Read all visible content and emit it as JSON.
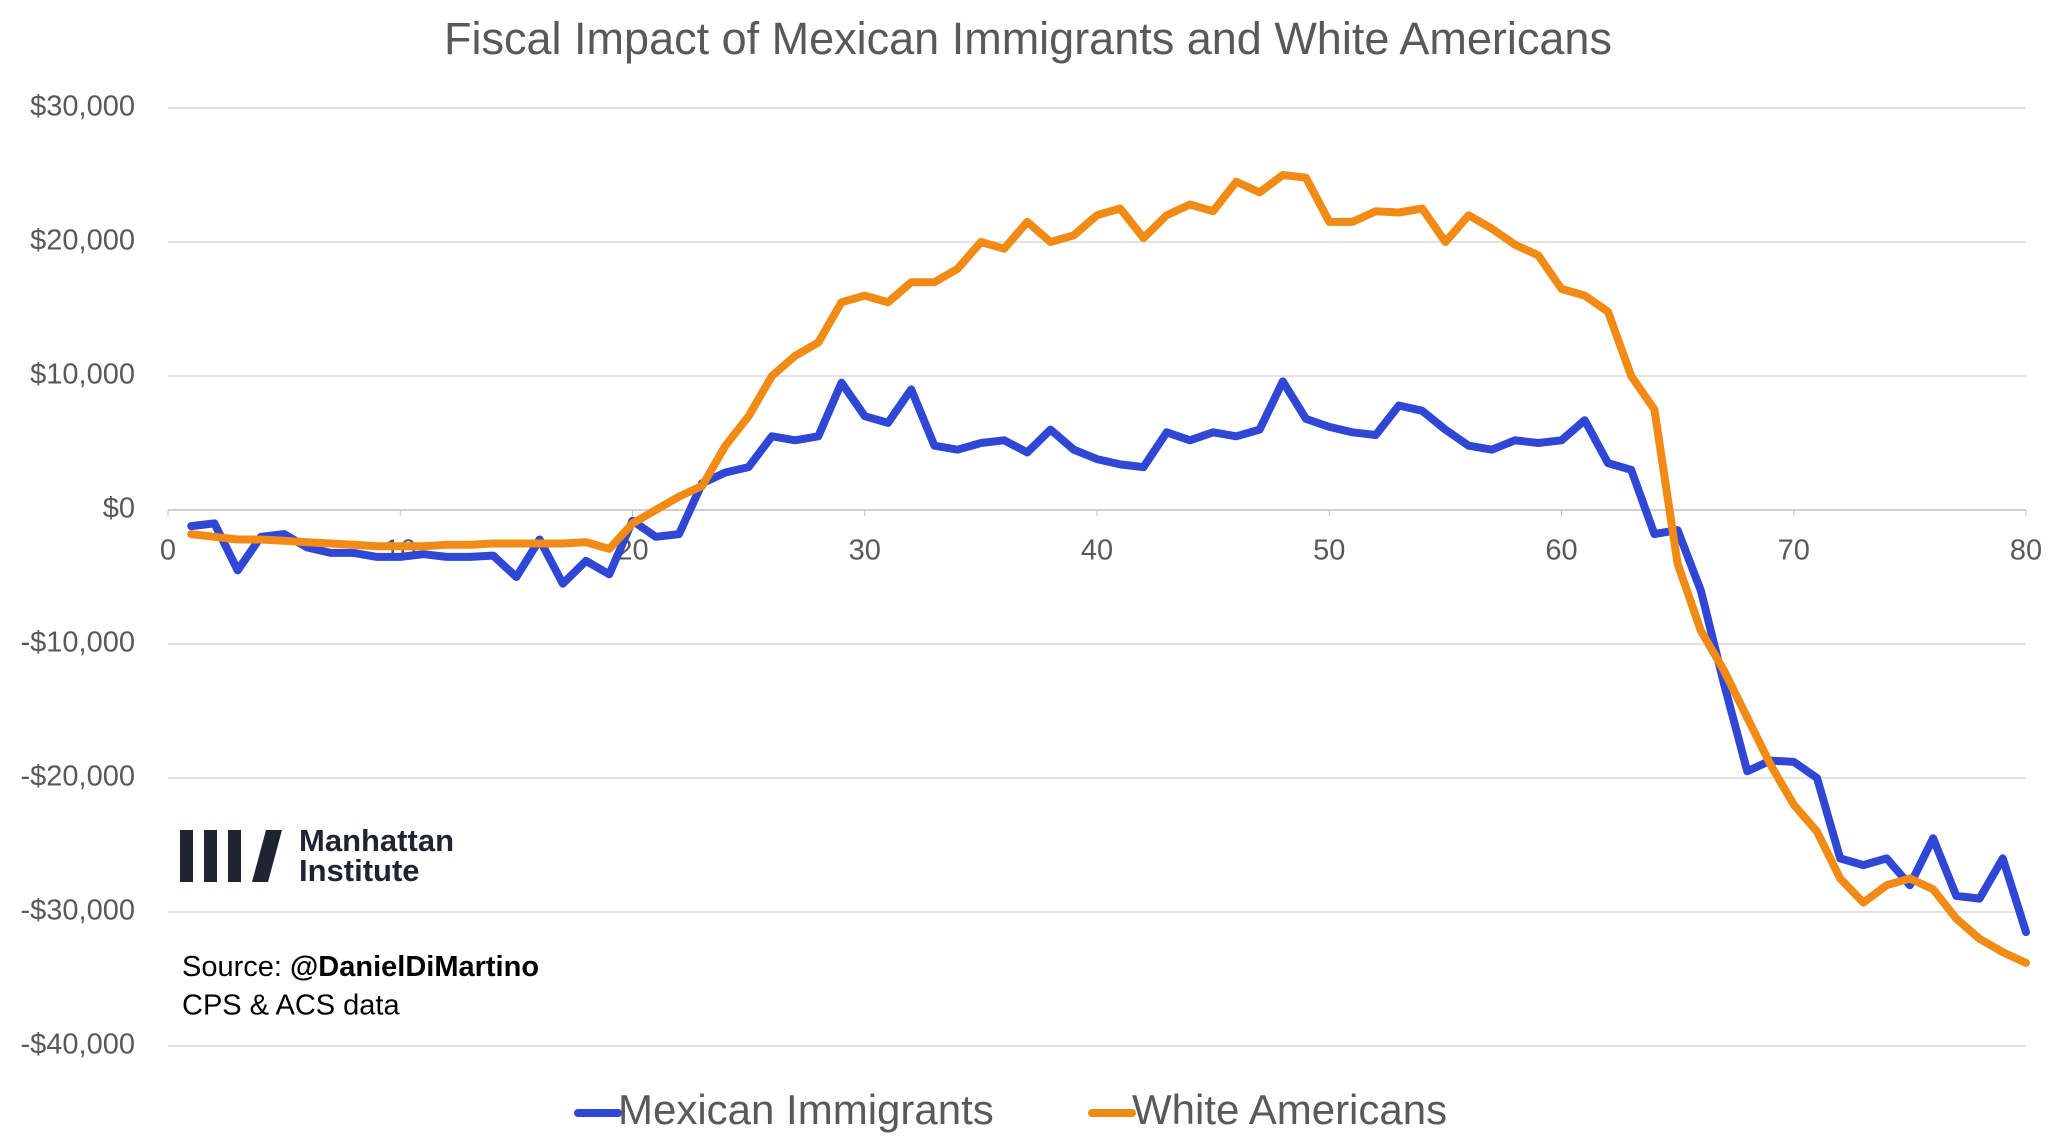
{
  "chart_data": {
    "type": "line",
    "title": "Fiscal Impact of Mexican Immigrants and White Americans",
    "x": [
      1,
      2,
      3,
      4,
      5,
      6,
      7,
      8,
      9,
      10,
      11,
      12,
      13,
      14,
      15,
      16,
      17,
      18,
      19,
      20,
      21,
      22,
      23,
      24,
      25,
      26,
      27,
      28,
      29,
      30,
      31,
      32,
      33,
      34,
      35,
      36,
      37,
      38,
      39,
      40,
      41,
      42,
      43,
      44,
      45,
      46,
      47,
      48,
      49,
      50,
      51,
      52,
      53,
      54,
      55,
      56,
      57,
      58,
      59,
      60,
      61,
      62,
      63,
      64,
      65,
      66,
      67,
      68,
      69,
      70,
      71,
      72,
      73,
      74,
      75,
      76,
      77,
      78,
      79,
      80
    ],
    "series": [
      {
        "name": "Mexican Immigrants",
        "color": "#3047d6",
        "values": [
          -1200,
          -1000,
          -4500,
          -2000,
          -1800,
          -2800,
          -3200,
          -3200,
          -3500,
          -3500,
          -3300,
          -3500,
          -3500,
          -3400,
          -5000,
          -2200,
          -5500,
          -3800,
          -4800,
          -800,
          -2000,
          -1800,
          2000,
          2800,
          3200,
          5500,
          5200,
          5500,
          9500,
          7000,
          6500,
          9000,
          4800,
          4500,
          5000,
          5200,
          4300,
          6000,
          4500,
          3800,
          3400,
          3200,
          5800,
          5200,
          5800,
          5500,
          6000,
          9600,
          6800,
          6200,
          5800,
          5600,
          7800,
          7400,
          6000,
          4800,
          4500,
          5200,
          5000,
          5200,
          6700,
          3500,
          3000,
          -1800,
          -1500,
          -6000,
          -13000,
          -19500,
          -18700,
          -18800,
          -20000,
          -26000,
          -26500,
          -26000,
          -28000,
          -24500,
          -28800,
          -29000,
          -26000,
          -31500
        ]
      },
      {
        "name": "White Americans",
        "color": "#f28a16",
        "values": [
          -1800,
          -2000,
          -2200,
          -2200,
          -2300,
          -2400,
          -2500,
          -2600,
          -2700,
          -2700,
          -2700,
          -2600,
          -2600,
          -2500,
          -2500,
          -2500,
          -2500,
          -2400,
          -2900,
          -1000,
          0,
          1000,
          1800,
          4800,
          7000,
          10000,
          11500,
          12500,
          15500,
          16000,
          15500,
          17000,
          17000,
          18000,
          20000,
          19500,
          21500,
          20000,
          20500,
          22000,
          22500,
          20300,
          22000,
          22800,
          22300,
          24500,
          23700,
          25000,
          24800,
          21500,
          21500,
          22300,
          22200,
          22500,
          20000,
          22000,
          21000,
          19800,
          19000,
          16500,
          16000,
          14800,
          10000,
          7500,
          -4000,
          -9000,
          -12000,
          -15500,
          -19000,
          -22000,
          -24000,
          -27500,
          -29300,
          -28000,
          -27500,
          -28300,
          -30500,
          -32000,
          -33000,
          -33800
        ]
      }
    ],
    "xlim": [
      0,
      80
    ],
    "xticks": [
      0,
      10,
      20,
      30,
      40,
      50,
      60,
      70,
      80
    ],
    "ylim": [
      -40000,
      30000
    ],
    "yticks": [
      {
        "value": -40000,
        "label": "-$40,000"
      },
      {
        "value": -30000,
        "label": "-$30,000"
      },
      {
        "value": -20000,
        "label": "-$20,000"
      },
      {
        "value": -10000,
        "label": "-$10,000"
      },
      {
        "value": 0,
        "label": "$0"
      },
      {
        "value": 10000,
        "label": "$10,000"
      },
      {
        "value": 20000,
        "label": "$20,000"
      },
      {
        "value": 30000,
        "label": "$30,000"
      }
    ],
    "grid": true,
    "legend": "bottom",
    "logo": [
      "Manhattan",
      "Institute"
    ],
    "source": {
      "prefix": "Source:",
      "handle": "@DanielDiMartino",
      "note": "CPS & ACS data"
    }
  }
}
